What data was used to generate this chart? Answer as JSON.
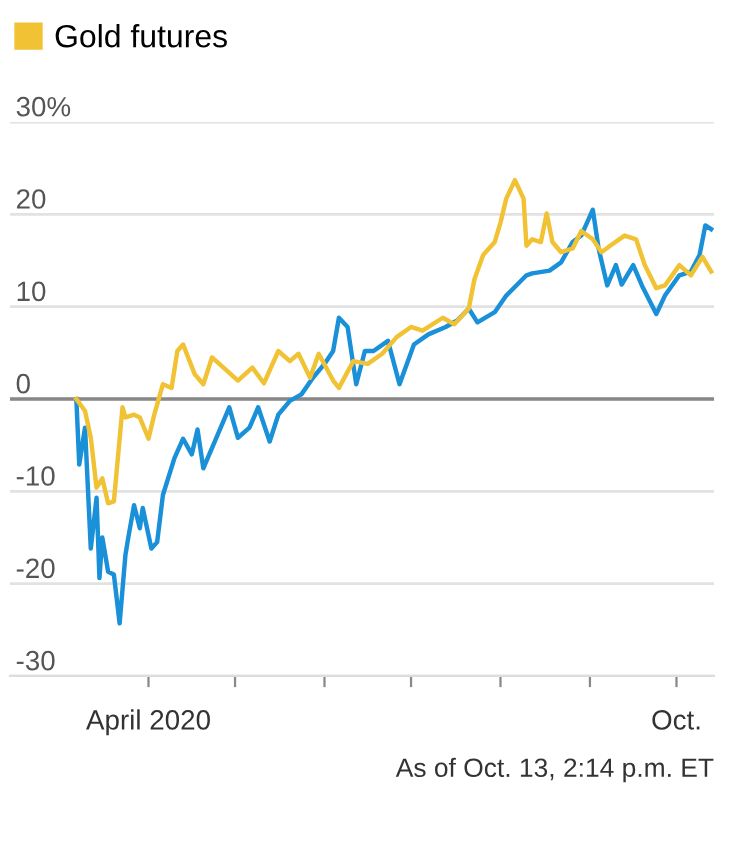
{
  "chart_data": {
    "type": "line",
    "legend": "top left",
    "grid": "y",
    "line_style": "solid",
    "marker": "none",
    "xlim": [
      "2020-02-13",
      "2020-10-14"
    ],
    "xticks": [
      {
        "value": "2020-04-01",
        "label": "April 2020"
      },
      {
        "value": "2020-05-01",
        "label": null
      },
      {
        "value": "2020-06-01",
        "label": null
      },
      {
        "value": "2020-07-01",
        "label": null
      },
      {
        "value": "2020-08-01",
        "label": null
      },
      {
        "value": "2020-09-01",
        "label": null
      },
      {
        "value": "2020-10-01",
        "label": "Oct."
      }
    ],
    "ylim": [
      -30,
      30
    ],
    "yticks": [
      {
        "value": 30,
        "label": "30%"
      },
      20,
      10,
      0,
      -10,
      -20,
      -30
    ],
    "ref_lines": [
      {
        "axis": "y",
        "value": 0,
        "color": "#888888"
      }
    ],
    "annotations": [
      "As of Oct. 13, 2:14 p.m. ET"
    ],
    "series": [
      {
        "color": "#1a90d9",
        "x": [
          "2020-03-07",
          "2020-03-08",
          "2020-03-10",
          "2020-03-12",
          "2020-03-14",
          "2020-03-15",
          "2020-03-16",
          "2020-03-18",
          "2020-03-20",
          "2020-03-22",
          "2020-03-24",
          "2020-03-25",
          "2020-03-27",
          "2020-03-29",
          "2020-03-30",
          "2020-04-02",
          "2020-04-04",
          "2020-04-06",
          "2020-04-10",
          "2020-04-13",
          "2020-04-16",
          "2020-04-18",
          "2020-04-20",
          "2020-04-24",
          "2020-04-29",
          "2020-05-02",
          "2020-05-06",
          "2020-05-09",
          "2020-05-13",
          "2020-05-16",
          "2020-05-20",
          "2020-05-24",
          "2020-05-28",
          "2020-06-01",
          "2020-06-04",
          "2020-06-06",
          "2020-06-09",
          "2020-06-12",
          "2020-06-15",
          "2020-06-18",
          "2020-06-23",
          "2020-06-27",
          "2020-07-02",
          "2020-07-07",
          "2020-07-13",
          "2020-07-17",
          "2020-07-21",
          "2020-07-24",
          "2020-07-30",
          "2020-08-03",
          "2020-08-10",
          "2020-08-12",
          "2020-08-18",
          "2020-08-22",
          "2020-08-26",
          "2020-08-29",
          "2020-09-02",
          "2020-09-04",
          "2020-09-07",
          "2020-09-10",
          "2020-09-12",
          "2020-09-16",
          "2020-09-19",
          "2020-09-24",
          "2020-09-27",
          "2020-10-02",
          "2020-10-06",
          "2020-10-09",
          "2020-10-11",
          "2020-10-13"
        ],
        "values": [
          0,
          -7.1,
          -3.1,
          -16.2,
          -10.7,
          -19.4,
          -15,
          -18.7,
          -19,
          -24.3,
          -16.9,
          -15,
          -11.5,
          -14,
          -11.8,
          -16.2,
          -15.5,
          -10.4,
          -6.4,
          -4.3,
          -6,
          -3.3,
          -7.5,
          -4.6,
          -0.9,
          -4.2,
          -3.1,
          -0.9,
          -4.6,
          -1.7,
          -0.2,
          0.5,
          2.3,
          3.8,
          5.2,
          8.8,
          7.8,
          1.6,
          5.2,
          5.2,
          6.3,
          1.6,
          5.9,
          7,
          7.8,
          8.5,
          9.8,
          8.3,
          9.4,
          11.2,
          13.4,
          13.6,
          13.9,
          14.8,
          17,
          17.7,
          20.5,
          16.3,
          12.3,
          14.5,
          12.4,
          14.5,
          12.3,
          9.2,
          11.2,
          13.4,
          13.8,
          15.6,
          18.8,
          18.4
        ]
      },
      {
        "name": "Gold futures",
        "color": "#f0c234",
        "x": [
          "2020-03-07",
          "2020-03-10",
          "2020-03-12",
          "2020-03-14",
          "2020-03-16",
          "2020-03-18",
          "2020-03-20",
          "2020-03-23",
          "2020-03-24",
          "2020-03-27",
          "2020-03-29",
          "2020-04-01",
          "2020-04-03",
          "2020-04-06",
          "2020-04-09",
          "2020-04-11",
          "2020-04-13",
          "2020-04-17",
          "2020-04-20",
          "2020-04-23",
          "2020-04-27",
          "2020-05-02",
          "2020-05-07",
          "2020-05-11",
          "2020-05-16",
          "2020-05-20",
          "2020-05-23",
          "2020-05-27",
          "2020-05-30",
          "2020-06-04",
          "2020-06-06",
          "2020-06-11",
          "2020-06-16",
          "2020-06-21",
          "2020-06-26",
          "2020-07-01",
          "2020-07-05",
          "2020-07-12",
          "2020-07-16",
          "2020-07-21",
          "2020-07-23",
          "2020-07-26",
          "2020-07-30",
          "2020-08-01",
          "2020-08-03",
          "2020-08-06",
          "2020-08-09",
          "2020-08-10",
          "2020-08-12",
          "2020-08-15",
          "2020-08-17",
          "2020-08-19",
          "2020-08-22",
          "2020-08-26",
          "2020-08-29",
          "2020-09-02",
          "2020-09-05",
          "2020-09-08",
          "2020-09-13",
          "2020-09-17",
          "2020-09-20",
          "2020-09-24",
          "2020-09-27",
          "2020-10-02",
          "2020-10-06",
          "2020-10-10",
          "2020-10-13"
        ],
        "values": [
          0,
          -1.3,
          -4.2,
          -9.6,
          -8.6,
          -11.3,
          -11.1,
          -0.9,
          -2,
          -1.7,
          -2,
          -4.3,
          -1.7,
          1.6,
          1.2,
          5.2,
          5.9,
          2.7,
          1.6,
          4.5,
          3.4,
          2,
          3.4,
          1.7,
          5.2,
          4.1,
          4.9,
          2.3,
          4.9,
          2,
          1.2,
          4.1,
          3.8,
          4.9,
          6.7,
          7.8,
          7.4,
          8.8,
          8.1,
          9.8,
          13,
          15.6,
          17,
          19.1,
          21.7,
          23.7,
          21.7,
          16.6,
          17.3,
          17,
          20.1,
          17,
          15.9,
          16.3,
          18.2,
          17.3,
          15.9,
          16.6,
          17.7,
          17.3,
          14.5,
          12,
          12.3,
          14.5,
          13.4,
          15.4,
          13.8
        ]
      }
    ]
  }
}
